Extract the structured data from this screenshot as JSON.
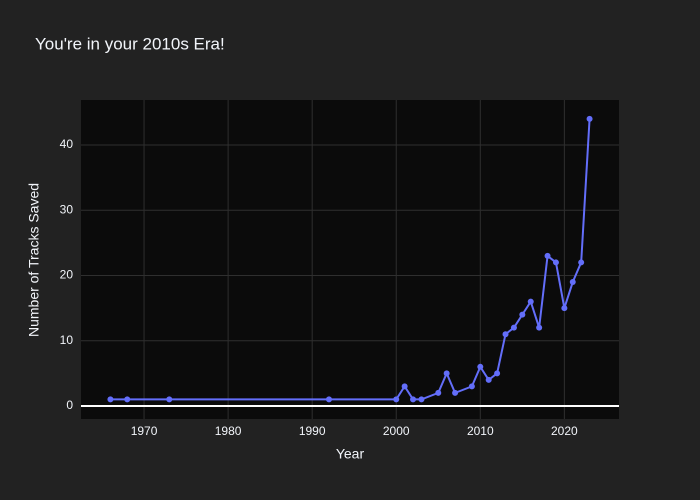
{
  "chart_data": {
    "type": "line",
    "title": "You're in your 2010s Era!",
    "x_label": "Year",
    "y_label": "Number of Tracks Saved",
    "x": [
      1966,
      1968,
      1973,
      1992,
      2000,
      2001,
      2002,
      2003,
      2005,
      2006,
      2007,
      2009,
      2010,
      2011,
      2012,
      2013,
      2014,
      2015,
      2016,
      2017,
      2018,
      2019,
      2020,
      2021,
      2022,
      2023
    ],
    "values": [
      1,
      1,
      1,
      1,
      1,
      3,
      1,
      1,
      2,
      5,
      2,
      3,
      6,
      4,
      5,
      11,
      12,
      14,
      16,
      12,
      23,
      22,
      15,
      19,
      22,
      44
    ],
    "color": "#636efa",
    "xlim": [
      1962.5,
      2026.5
    ],
    "ylim": [
      -2,
      46.9
    ],
    "xticks": [
      1970,
      1980,
      1990,
      2000,
      2010,
      2020
    ],
    "yticks": [
      0,
      10,
      20,
      30,
      40
    ],
    "grid": true
  }
}
